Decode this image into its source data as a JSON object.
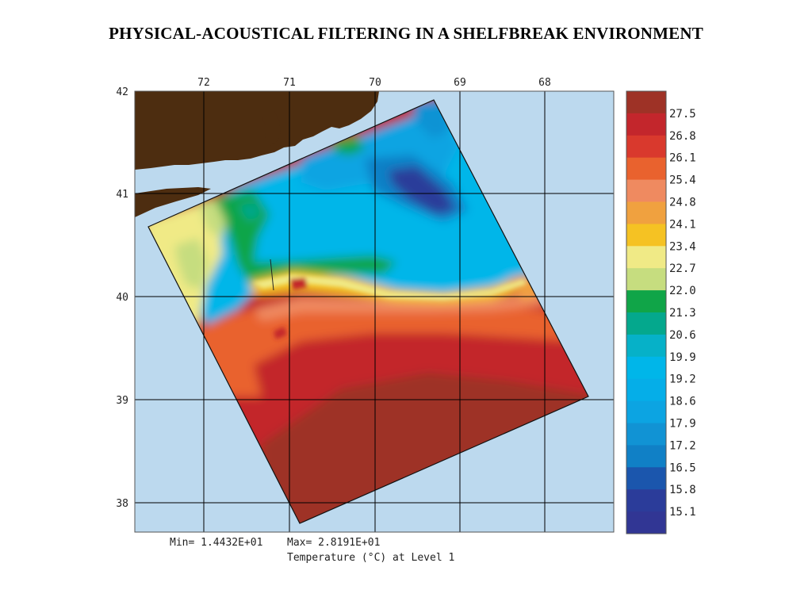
{
  "title": "PHYSICAL-ACOUSTICAL FILTERING IN A SHELFBREAK ENVIRONMENT",
  "map": {
    "lon_ticks": [
      "72",
      "71",
      "70",
      "69",
      "68"
    ],
    "lat_ticks": [
      "42",
      "41",
      "40",
      "39",
      "38"
    ],
    "stats": {
      "min_text": "Min= 1.4432E+01",
      "max_text": "Max= 2.8191E+01"
    },
    "caption": "Temperature (°C) at Level 1",
    "colors": {
      "ocean": "#bcd9ee",
      "land": "#4d2d10"
    }
  },
  "legend": {
    "labels": [
      "27.5",
      "26.8",
      "26.1",
      "25.4",
      "24.8",
      "24.1",
      "23.4",
      "22.7",
      "22.0",
      "21.3",
      "20.6",
      "19.9",
      "19.2",
      "18.6",
      "17.9",
      "17.2",
      "16.5",
      "15.8",
      "15.1"
    ],
    "colors": [
      "#9e3226",
      "#c3262c",
      "#d9392d",
      "#e9622e",
      "#ef8a60",
      "#f0a13f",
      "#f5c223",
      "#f0ea86",
      "#c6dd7f",
      "#10a548",
      "#04a88d",
      "#06b1c8",
      "#00b6e9",
      "#05aee8",
      "#0ca4e2",
      "#1193d4",
      "#1080c6",
      "#1b56ad",
      "#2b3c9a",
      "#313694"
    ]
  }
}
